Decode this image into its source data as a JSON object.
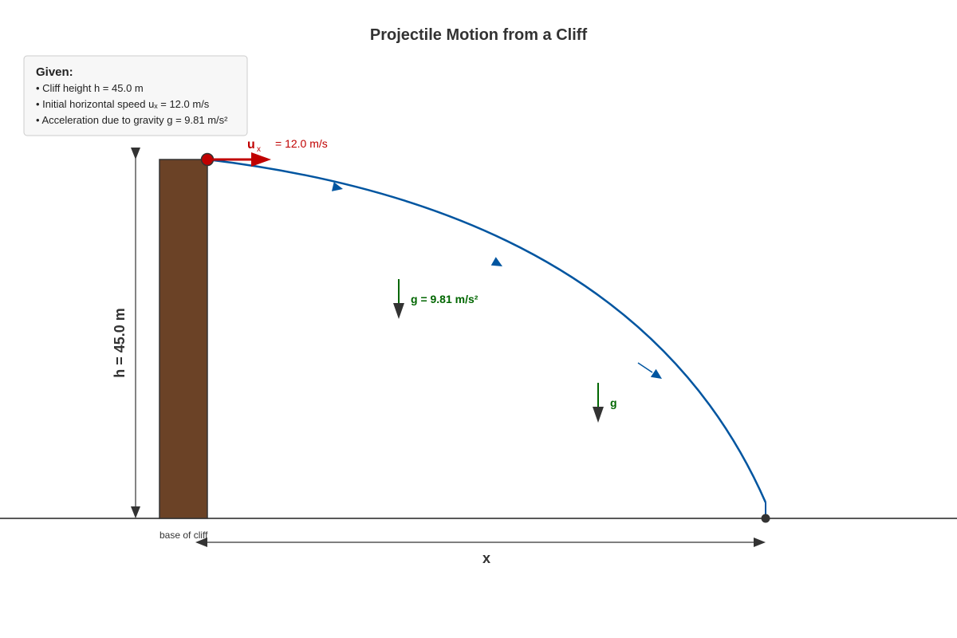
{
  "title": "Projectile Motion from a Cliff",
  "given": {
    "heading": "Given:",
    "items": [
      "• Cliff height h = 45.0 m",
      "• Initial horizontal speed uₓ = 12.0 m/s",
      "• Acceleration due to gravity g = 9.81 m/s²"
    ]
  },
  "velocity_label": {
    "symbol": "u",
    "subscript": "x",
    "value_text": "= 12.0 m/s"
  },
  "gravity_label_main": "g = 9.81 m/s²",
  "gravity_label_short": "g",
  "height_label": "h = 45.0 m",
  "base_label": "base of cliff",
  "distance_label": "x",
  "colors": {
    "cliff": "#6b4226",
    "trajectory": "#0055a0",
    "velocity": "#c00000",
    "gravity": "#006600",
    "dimension": "#333333"
  }
}
